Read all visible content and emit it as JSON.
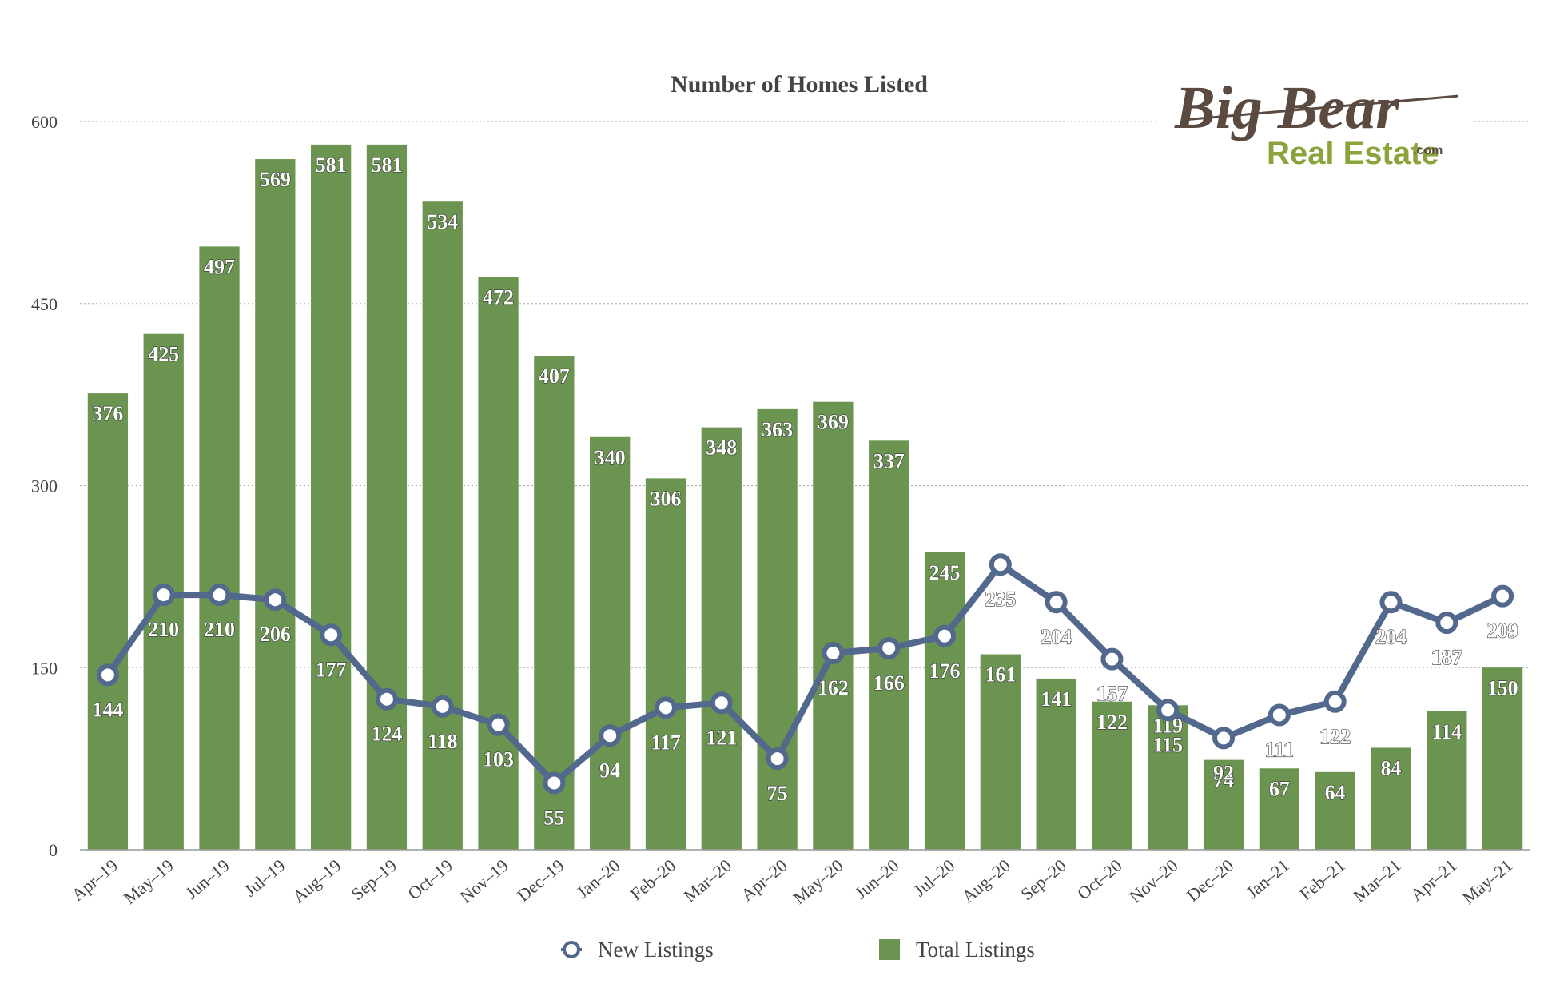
{
  "chart_data": {
    "type": "bar",
    "title": "Number of Homes Listed",
    "categories": [
      "Apr–19",
      "May–19",
      "Jun–19",
      "Jul–19",
      "Aug–19",
      "Sep–19",
      "Oct–19",
      "Nov–19",
      "Dec–19",
      "Jan–20",
      "Feb–20",
      "Mar–20",
      "Apr–20",
      "May–20",
      "Jun–20",
      "Jul–20",
      "Aug–20",
      "Sep–20",
      "Oct–20",
      "Nov–20",
      "Dec–20",
      "Jan–21",
      "Feb–21",
      "Mar–21",
      "Apr–21",
      "May–21"
    ],
    "series": [
      {
        "name": "Total Listings",
        "kind": "bar",
        "color": "#6a9450",
        "values": [
          376,
          425,
          497,
          569,
          581,
          581,
          534,
          472,
          407,
          340,
          306,
          348,
          363,
          369,
          337,
          245,
          161,
          141,
          122,
          119,
          74,
          67,
          64,
          84,
          114,
          150
        ]
      },
      {
        "name": "New Listings",
        "kind": "line",
        "color": "#52688d",
        "values": [
          144,
          210,
          210,
          206,
          177,
          124,
          118,
          103,
          55,
          94,
          117,
          121,
          75,
          162,
          166,
          176,
          235,
          204,
          157,
          115,
          92,
          111,
          122,
          204,
          187,
          209
        ]
      }
    ],
    "ylim": [
      0,
      600
    ],
    "yticks": [
      0,
      150,
      300,
      450,
      600
    ],
    "grid": true,
    "legend_position": "bottom",
    "xlabel": "",
    "ylabel": ""
  },
  "logo": {
    "line1": "Big Bear",
    "line2": "Real Estate",
    "suffix": ".com"
  }
}
